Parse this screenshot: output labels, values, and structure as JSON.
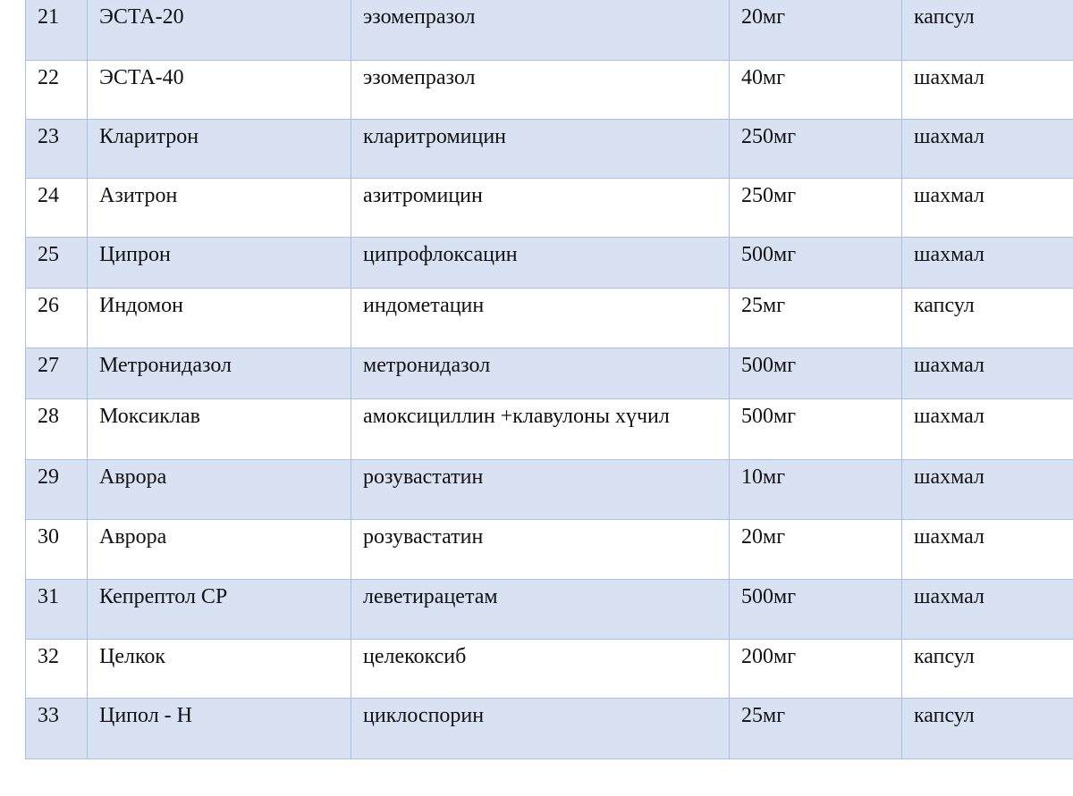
{
  "colors": {
    "shaded_row": "#d9e2f3",
    "border": "#a9bfe3"
  },
  "rows": [
    {
      "no": "21",
      "name": "ЭСТА-20",
      "ingredient": "эзомепразол",
      "dose": "20мг",
      "form": "капсул"
    },
    {
      "no": "22",
      "name": "ЭСТА-40",
      "ingredient": "эзомепразол",
      "dose": "40мг",
      "form": "шахмал"
    },
    {
      "no": "23",
      "name": "Кларитрон",
      "ingredient": "кларитромицин",
      "dose": "250мг",
      "form": "шахмал"
    },
    {
      "no": "24",
      "name": "Азитрон",
      "ingredient": "азитромицин",
      "dose": "250мг",
      "form": "шахмал"
    },
    {
      "no": "25",
      "name": "Ципрон",
      "ingredient": "ципрофлоксацин",
      "dose": "500мг",
      "form": "шахмал"
    },
    {
      "no": "26",
      "name": "Индомон",
      "ingredient": "индометацин",
      "dose": "25мг",
      "form": "капсул"
    },
    {
      "no": "27",
      "name": "Метронидазол",
      "ingredient": "метронидазол",
      "dose": "500мг",
      "form": "шахмал"
    },
    {
      "no": "28",
      "name": "Моксиклав",
      "ingredient": "амоксициллин +клавулоны хүчил",
      "dose": "500мг",
      "form": "шахмал"
    },
    {
      "no": "29",
      "name": "Аврора",
      "ingredient": "розувастатин",
      "dose": "10мг",
      "form": "шахмал"
    },
    {
      "no": "30",
      "name": "Аврора",
      "ingredient": "розувастатин",
      "dose": "20мг",
      "form": "шахмал"
    },
    {
      "no": "31",
      "name": "Кепрептол СР",
      "ingredient": "леветирацетам",
      "dose": "500мг",
      "form": "шахмал"
    },
    {
      "no": "32",
      "name": "Целкок",
      "ingredient": "целекоксиб",
      "dose": "200мг",
      "form": "капсул"
    },
    {
      "no": "33",
      "name": "Ципол - Н",
      "ingredient": "циклоспорин",
      "dose": "25мг",
      "form": "капсул"
    }
  ]
}
